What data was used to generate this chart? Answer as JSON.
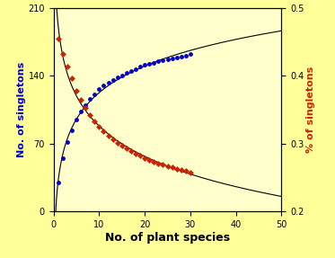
{
  "xlabel": "No. of plant species",
  "ylabel_left": "No. of singletons",
  "ylabel_right": "% of singletons",
  "xlim": [
    0,
    50
  ],
  "ylim_left": [
    0,
    210
  ],
  "ylim_right": [
    0.2,
    0.5
  ],
  "xticks": [
    0,
    10,
    20,
    30,
    40,
    50
  ],
  "yticks_left": [
    0,
    70,
    140,
    210
  ],
  "yticks_right": [
    0.2,
    0.3,
    0.4,
    0.5
  ],
  "blue_x": [
    1,
    2,
    3,
    4,
    5,
    6,
    7,
    8,
    9,
    10,
    11,
    12,
    13,
    14,
    15,
    16,
    17,
    18,
    19,
    20,
    21,
    22,
    23,
    24,
    25,
    26,
    27,
    28,
    29,
    30
  ],
  "blue_y": [
    30,
    55,
    72,
    84,
    95,
    103,
    110,
    116,
    121,
    126,
    130,
    133,
    136,
    138,
    140,
    143,
    145,
    147,
    149,
    151,
    152,
    153,
    155,
    156,
    157,
    158,
    159,
    160,
    161,
    162
  ],
  "red_x": [
    1,
    2,
    3,
    4,
    5,
    6,
    7,
    8,
    9,
    10,
    11,
    12,
    13,
    14,
    15,
    16,
    17,
    18,
    19,
    20,
    21,
    22,
    23,
    24,
    25,
    26,
    27,
    28,
    29,
    30
  ],
  "red_y": [
    0.455,
    0.432,
    0.414,
    0.396,
    0.378,
    0.364,
    0.352,
    0.342,
    0.333,
    0.325,
    0.318,
    0.312,
    0.306,
    0.301,
    0.297,
    0.293,
    0.289,
    0.285,
    0.282,
    0.279,
    0.276,
    0.273,
    0.271,
    0.269,
    0.267,
    0.265,
    0.263,
    0.261,
    0.26,
    0.258
  ],
  "bg_outer": "#FFFF99",
  "bg_plot": "#FFFFCC",
  "blue_color": "#0000CC",
  "red_color": "#CC2200",
  "line_color": "#000000",
  "left_label_color": "#0000CC",
  "right_label_color": "#CC2200",
  "figsize": [
    3.73,
    2.87
  ],
  "dpi": 100
}
